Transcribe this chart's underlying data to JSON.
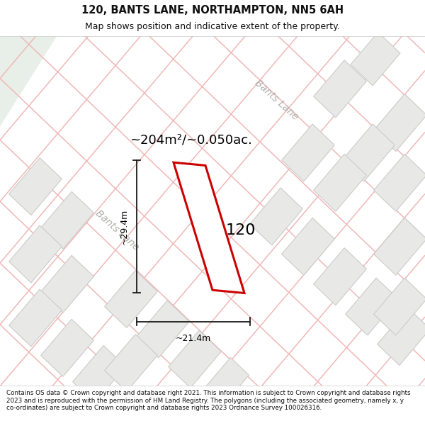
{
  "title_line1": "120, BANTS LANE, NORTHAMPTON, NN5 6AH",
  "title_line2": "Map shows position and indicative extent of the property.",
  "area_text": "~204m²/~0.050ac.",
  "property_number": "120",
  "dim_height": "~29.4m",
  "dim_width": "~21.4m",
  "footer_text": "Contains OS data © Crown copyright and database right 2021. This information is subject to Crown copyright and database rights 2023 and is reproduced with the permission of HM Land Registry. The polygons (including the associated geometry, namely x, y co-ordinates) are subject to Crown copyright and database rights 2023 Ordnance Survey 100026316.",
  "map_bg": "#f9f9f8",
  "road_line_color": "#f0b8b8",
  "block_color": "#e8e8e6",
  "block_edge": "#ccccca",
  "property_edge": "#cc0000",
  "property_fill": "#ffffff",
  "dim_line_color": "#1a1a1a",
  "road_label_color": "#b0b0ae",
  "title_color": "#111111",
  "footer_color": "#111111",
  "green_zone_color": "#e8efe8",
  "header_bg": "#ffffff",
  "footer_bg": "#ffffff"
}
